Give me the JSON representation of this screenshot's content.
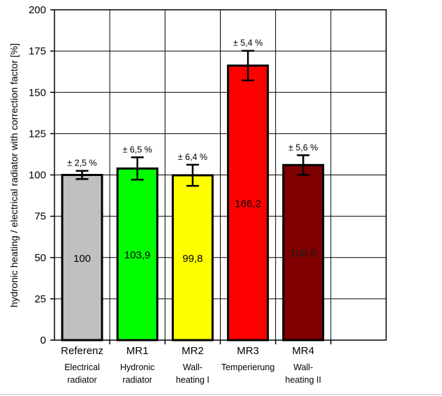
{
  "chart_data": {
    "type": "bar",
    "ylabel": "hydronic heating  / electrical radiator with correction factor [%]",
    "ylim": [
      0,
      200
    ],
    "yticks": [
      0,
      25,
      50,
      75,
      100,
      125,
      150,
      175,
      200
    ],
    "grid": true,
    "legend": "none",
    "categories": [
      "Referenz",
      "MR1",
      "MR2",
      "MR3",
      "MR4"
    ],
    "sublabels": [
      [
        "Electrical",
        "radiator"
      ],
      [
        "Hydronic",
        "radiator"
      ],
      [
        "Wall-",
        "heating I"
      ],
      [
        "Temperierung"
      ],
      [
        "Wall-",
        "heating II"
      ]
    ],
    "values": [
      100,
      103.9,
      99.8,
      166.2,
      106.0
    ],
    "value_labels": [
      "100",
      "103,9",
      "99,8",
      "166,2",
      "106,0"
    ],
    "error_pct": [
      2.5,
      6.5,
      6.4,
      5.4,
      5.6
    ],
    "error_labels": [
      "± 2,5 %",
      "± 6,5 %",
      "± 6,4 %",
      "± 5,4 %",
      "± 5,6 %"
    ],
    "colors": [
      "#c0c0c0",
      "#00ff00",
      "#ffff00",
      "#ff0000",
      "#800000"
    ]
  }
}
